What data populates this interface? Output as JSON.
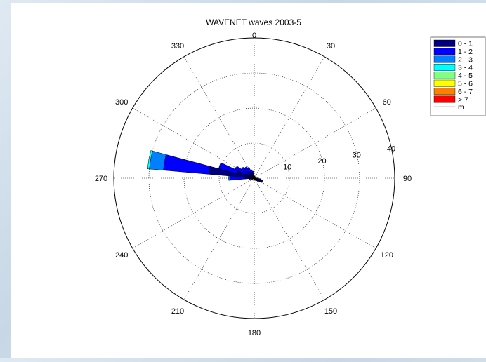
{
  "chart_data": {
    "type": "polar",
    "title": "WAVENET waves 2003-5",
    "direction_ticks": [
      "0",
      "30",
      "60",
      "90",
      "120",
      "150",
      "180",
      "210",
      "240",
      "270",
      "300",
      "330"
    ],
    "radial_ticks": [
      "10",
      "20",
      "30",
      "40"
    ],
    "rmax": 40,
    "sector_width_deg": 10,
    "legend": {
      "placement": "top-right",
      "classes": [
        {
          "label": "0 - 1",
          "color": "#00007f"
        },
        {
          "label": "1 - 2",
          "color": "#0000ff"
        },
        {
          "label": "2 - 3",
          "color": "#0080ff"
        },
        {
          "label": "3 - 4",
          "color": "#00ffff"
        },
        {
          "label": "4 - 5",
          "color": "#80ff80"
        },
        {
          "label": "5 - 6",
          "color": "#ffff00"
        },
        {
          "label": "6 - 7",
          "color": "#ff8000"
        },
        {
          "label": "> 7",
          "color": "#ff0000"
        }
      ],
      "unit": "m"
    },
    "sectors": [
      {
        "direction": 280,
        "cumulative": [
          13,
          26,
          30,
          30.5
        ]
      },
      {
        "direction": 290,
        "cumulative": [
          5,
          10.5
        ]
      },
      {
        "direction": 270,
        "cumulative": [
          3,
          7,
          7.3
        ]
      },
      {
        "direction": 300,
        "cumulative": [
          2.5,
          6
        ]
      },
      {
        "direction": 310,
        "cumulative": [
          2,
          4.5
        ]
      },
      {
        "direction": 320,
        "cumulative": [
          2,
          4
        ]
      },
      {
        "direction": 330,
        "cumulative": [
          2,
          3.5
        ]
      },
      {
        "direction": 340,
        "cumulative": [
          1.5,
          2.5
        ]
      },
      {
        "direction": 350,
        "cumulative": [
          1,
          2
        ]
      },
      {
        "direction": 0,
        "cumulative": [
          0.8
        ]
      },
      {
        "direction": 10,
        "cumulative": [
          0.6
        ]
      },
      {
        "direction": 20,
        "cumulative": [
          0.5
        ]
      },
      {
        "direction": 30,
        "cumulative": [
          0.5
        ]
      },
      {
        "direction": 60,
        "cumulative": [
          0.5
        ]
      },
      {
        "direction": 90,
        "cumulative": [
          1
        ]
      },
      {
        "direction": 100,
        "cumulative": [
          2
        ]
      },
      {
        "direction": 110,
        "cumulative": [
          2.5
        ]
      },
      {
        "direction": 120,
        "cumulative": [
          2
        ]
      },
      {
        "direction": 130,
        "cumulative": [
          1.5
        ]
      },
      {
        "direction": 140,
        "cumulative": [
          1
        ]
      },
      {
        "direction": 150,
        "cumulative": [
          0.8
        ]
      },
      {
        "direction": 160,
        "cumulative": [
          0.6
        ]
      },
      {
        "direction": 180,
        "cumulative": [
          0.5
        ]
      },
      {
        "direction": 210,
        "cumulative": [
          0.4
        ]
      },
      {
        "direction": 240,
        "cumulative": [
          0.6
        ]
      },
      {
        "direction": 250,
        "cumulative": [
          0.8
        ]
      },
      {
        "direction": 260,
        "cumulative": [
          1.5
        ]
      }
    ]
  }
}
